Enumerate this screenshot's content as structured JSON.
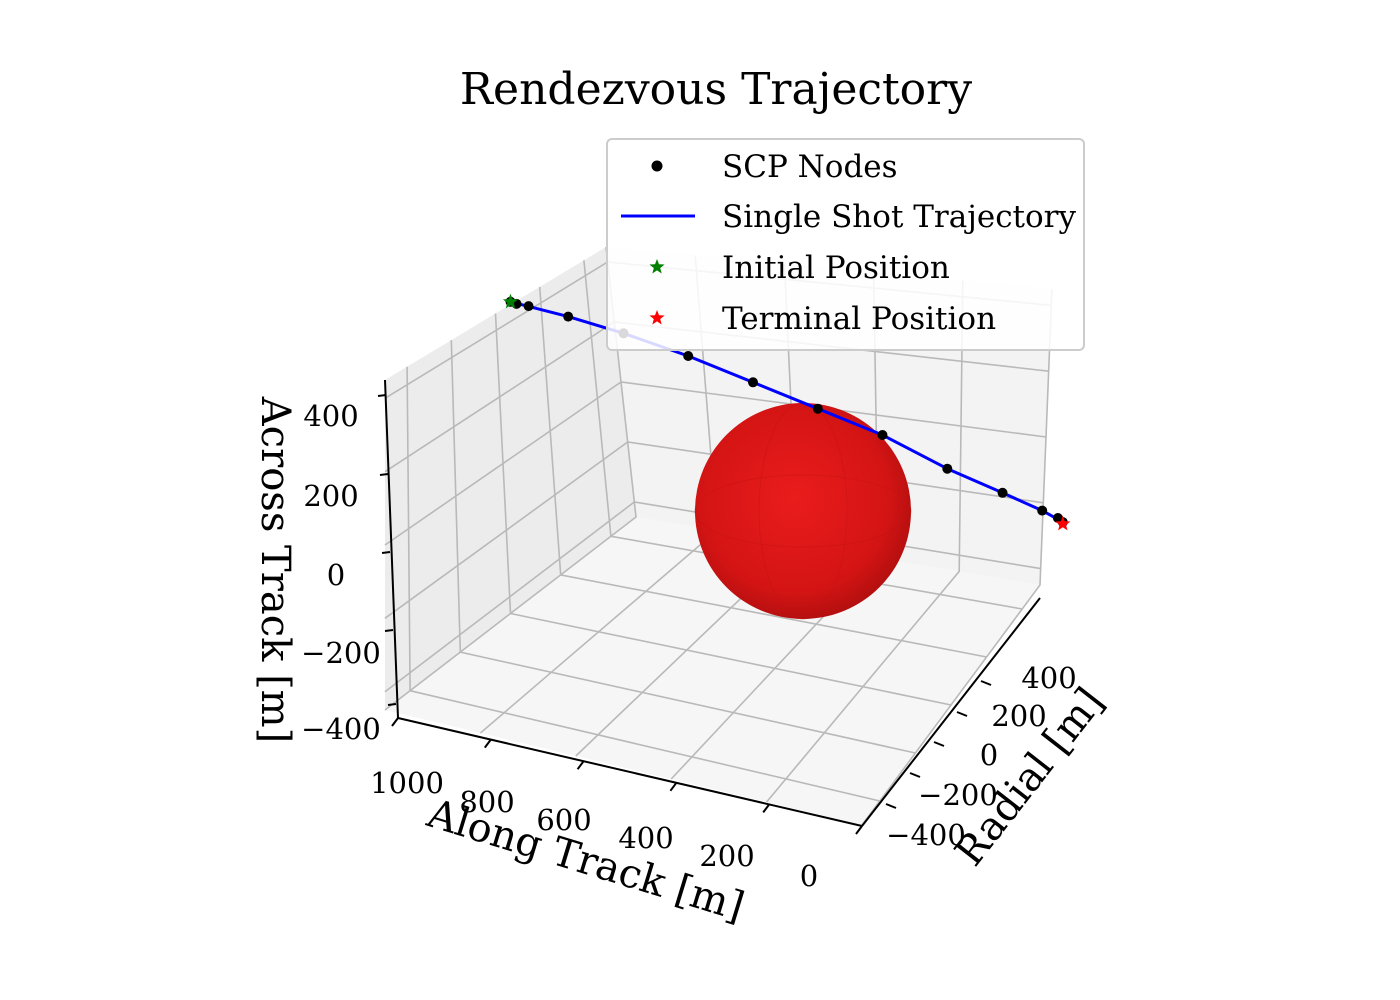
{
  "chart_data": {
    "type": "scatter",
    "projection": "3d",
    "title": "Rendezvous Trajectory",
    "axes": {
      "along_track": {
        "label": "Along Track [m]",
        "ticks": [
          1000,
          800,
          600,
          400,
          200,
          0
        ],
        "tick_labels": [
          "1000",
          "800",
          "600",
          "400",
          "200",
          "0"
        ],
        "range": [
          0,
          1000
        ]
      },
      "radial": {
        "label": "Radial [m]",
        "ticks": [
          -400,
          -200,
          0,
          200,
          400
        ],
        "tick_labels": [
          "−400",
          "−200",
          "0",
          "200",
          "400"
        ],
        "range": [
          -500,
          500
        ]
      },
      "across_track": {
        "label": "Across Track [m]",
        "ticks": [
          -400,
          -200,
          0,
          200,
          400
        ],
        "tick_labels": [
          "−400",
          "−200",
          "0",
          "200",
          "400"
        ],
        "range": [
          -450,
          450
        ]
      }
    },
    "grid": true,
    "legend": {
      "position": "top-right",
      "entries": [
        {
          "name": "SCP Nodes",
          "marker": "dot",
          "color": "#000000"
        },
        {
          "name": "Single Shot Trajectory",
          "marker": "line",
          "color": "#0000ff"
        },
        {
          "name": "Initial Position",
          "marker": "star",
          "color": "#008000"
        },
        {
          "name": "Terminal Position",
          "marker": "star",
          "color": "#ff0000"
        }
      ]
    },
    "series": [
      {
        "name": "SCP Nodes",
        "along_track": [
          1000,
          990,
          970,
          900,
          800,
          680,
          560,
          440,
          320,
          200,
          100,
          30,
          5,
          0
        ],
        "radial": [
          0,
          5,
          15,
          40,
          70,
          100,
          130,
          160,
          190,
          220,
          250,
          275,
          290,
          300
        ],
        "across_track": [
          400,
          395,
          390,
          370,
          340,
          300,
          250,
          200,
          150,
          80,
          30,
          -10,
          -30,
          -45
        ]
      },
      {
        "name": "Single Shot Trajectory",
        "along_track": [
          1000,
          900,
          800,
          680,
          560,
          440,
          320,
          200,
          100,
          30,
          0
        ],
        "radial": [
          0,
          40,
          70,
          100,
          130,
          160,
          190,
          220,
          250,
          275,
          300
        ],
        "across_track": [
          400,
          370,
          340,
          300,
          250,
          200,
          150,
          80,
          30,
          -10,
          -45
        ]
      },
      {
        "name": "Initial Position",
        "along_track": [
          1000
        ],
        "radial": [
          0
        ],
        "across_track": [
          400
        ]
      },
      {
        "name": "Terminal Position",
        "along_track": [
          0
        ],
        "radial": [
          300
        ],
        "across_track": [
          -50
        ]
      }
    ],
    "keep_out_zone": {
      "shape": "sphere",
      "color": "#dd1111",
      "center": {
        "along_track": 200,
        "radial": 100,
        "across_track": 0
      },
      "radius": 260
    }
  }
}
